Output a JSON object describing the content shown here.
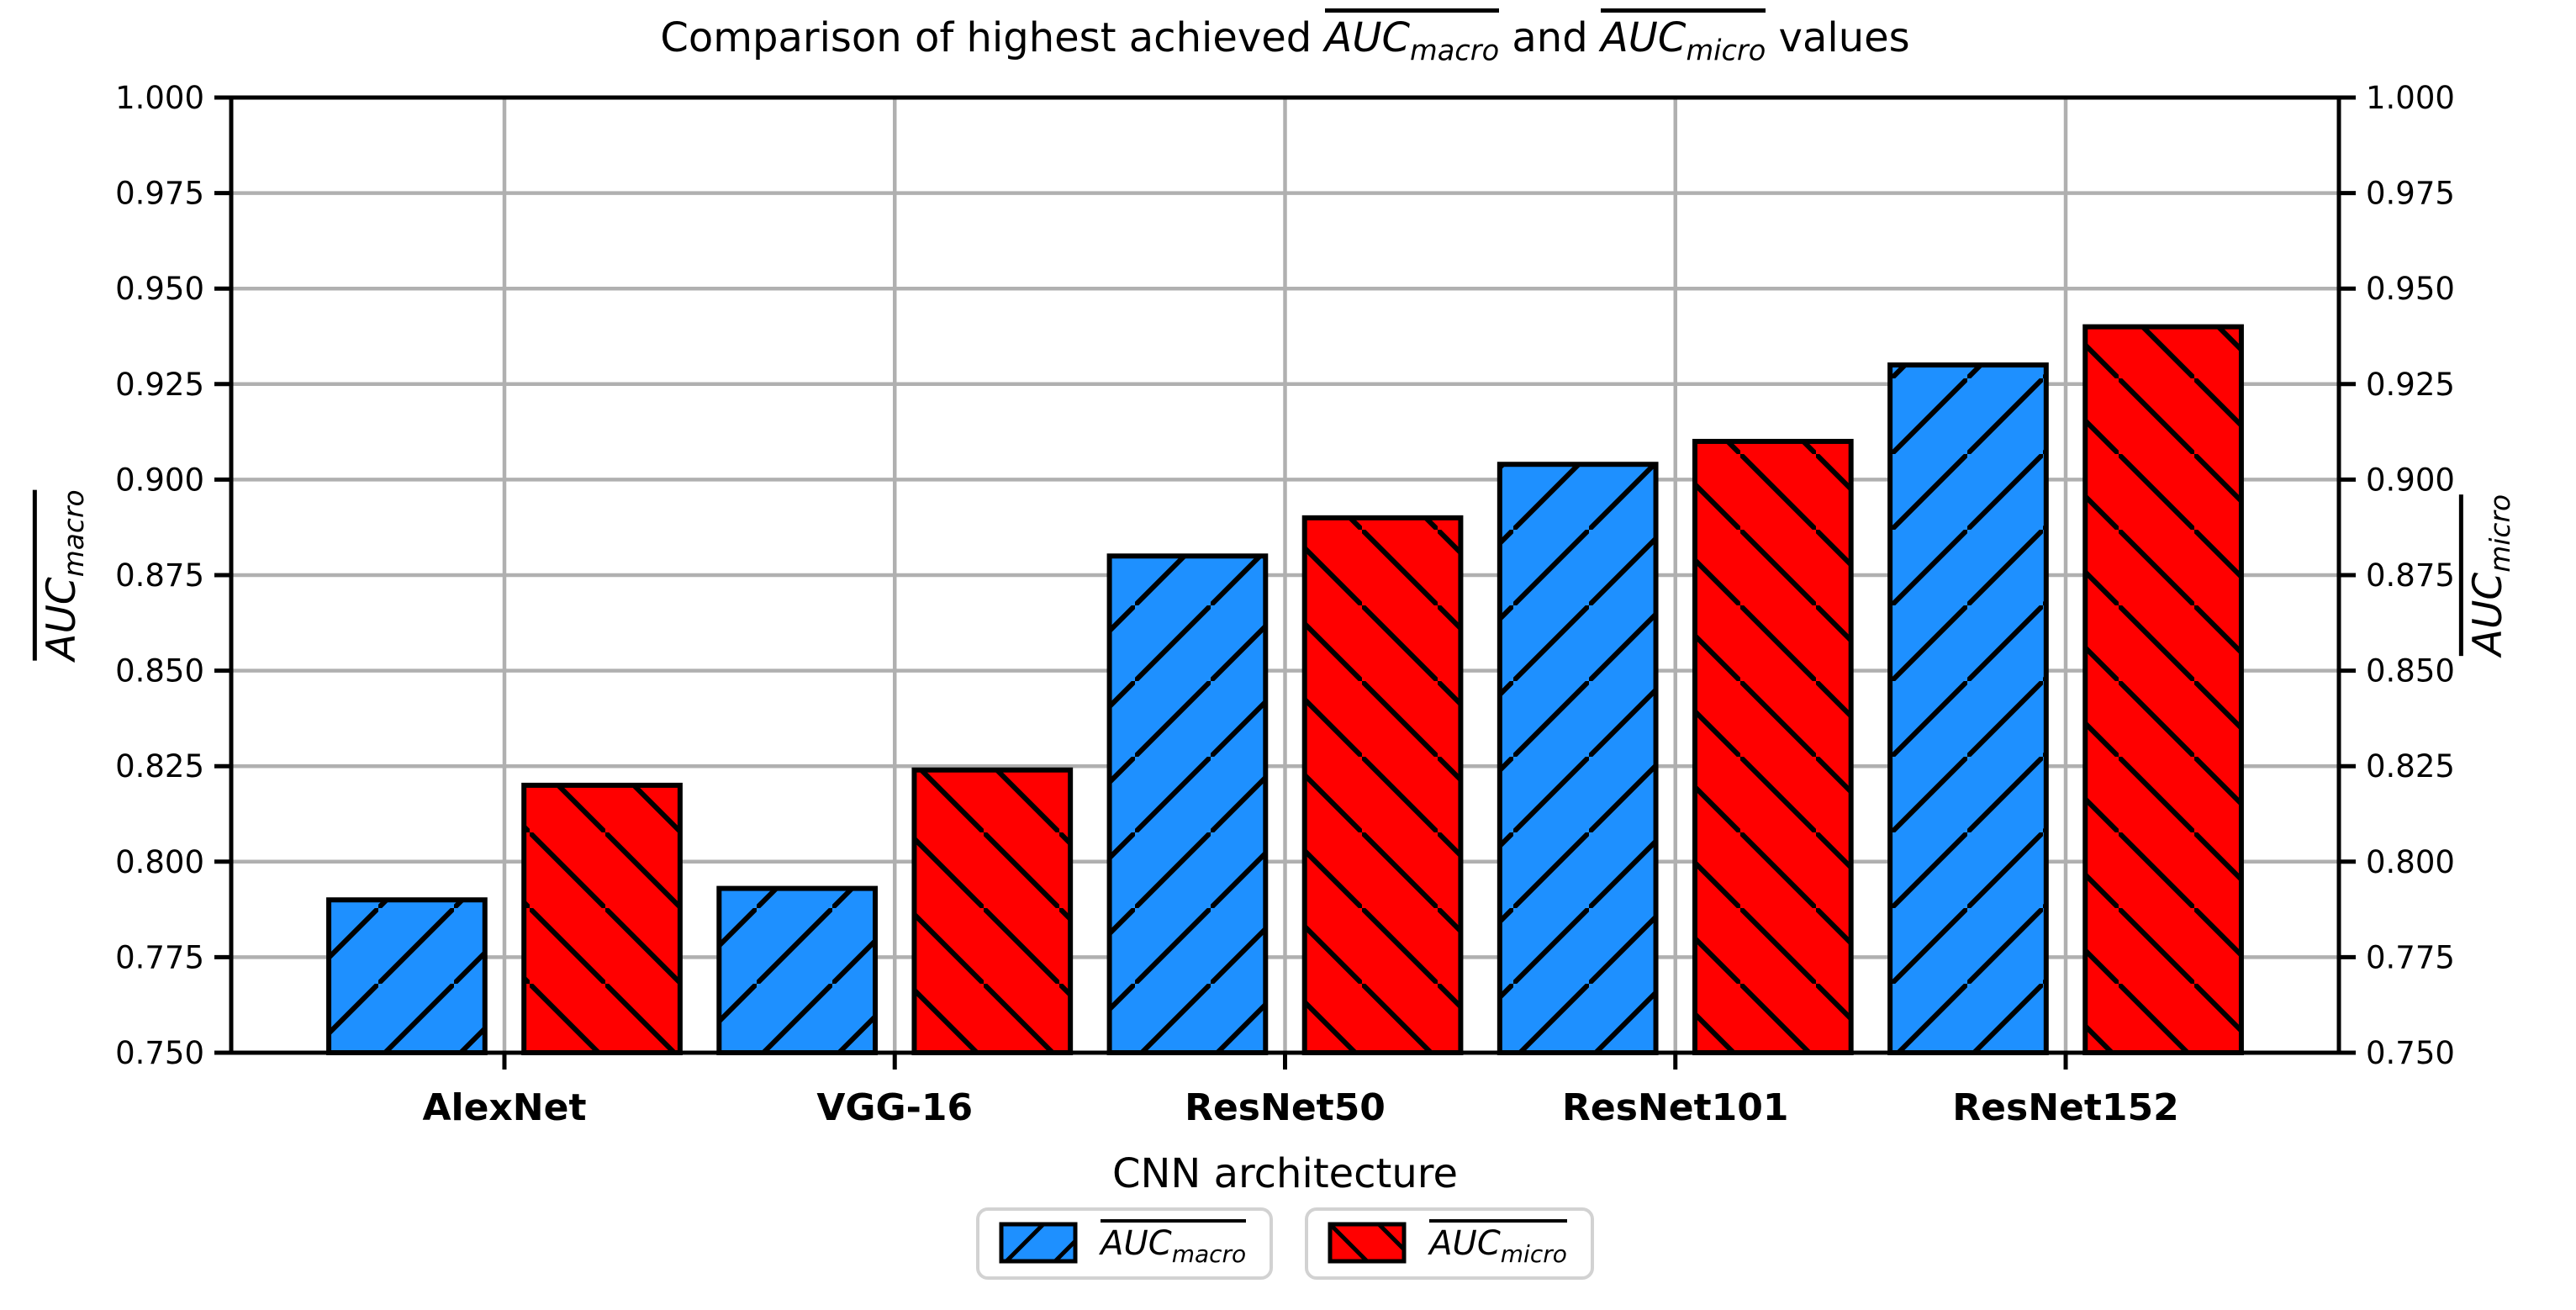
{
  "figure": {
    "title_parts": {
      "prefix": "Comparison of highest achieved ",
      "term1_base": "AUC",
      "term1_sub": "macro",
      "connector": " and ",
      "term2_base": "AUC",
      "term2_sub": "micro",
      "suffix": " values"
    },
    "ylabel_left": {
      "base": "AUC",
      "sub": "macro"
    },
    "ylabel_right": {
      "base": "AUC",
      "sub": "micro"
    },
    "xlabel": "CNN architecture",
    "legend_items": [
      {
        "base": "AUC",
        "sub": "macro"
      },
      {
        "base": "AUC",
        "sub": "micro"
      }
    ],
    "colors": {
      "macro_bar": "#1e90ff",
      "micro_bar": "#ff0000",
      "bar_edge": "#000000",
      "grid": "#b0b0b0",
      "legend_border": "#d2d2d2",
      "background": "#ffffff"
    }
  },
  "chart_data": {
    "type": "bar",
    "title": "Comparison of highest achieved AUC_macro and AUC_micro values",
    "categories": [
      "AlexNet",
      "VGG-16",
      "ResNet50",
      "ResNet101",
      "ResNet152"
    ],
    "series": [
      {
        "name": "AUC_macro",
        "color": "#1e90ff",
        "hatch": "/",
        "values": [
          0.79,
          0.793,
          0.88,
          0.904,
          0.93
        ]
      },
      {
        "name": "AUC_micro",
        "color": "#ff0000",
        "hatch": "\\",
        "values": [
          0.82,
          0.824,
          0.89,
          0.91,
          0.94
        ]
      }
    ],
    "xlabel": "CNN architecture",
    "ylabel_left": "AUC_macro",
    "ylabel_right": "AUC_micro",
    "ylim": [
      0.75,
      1.0
    ],
    "ytick_step": 0.025,
    "ytick_decimals": 3,
    "grid": true,
    "dual_axis": true,
    "legend_position": "bottom"
  }
}
